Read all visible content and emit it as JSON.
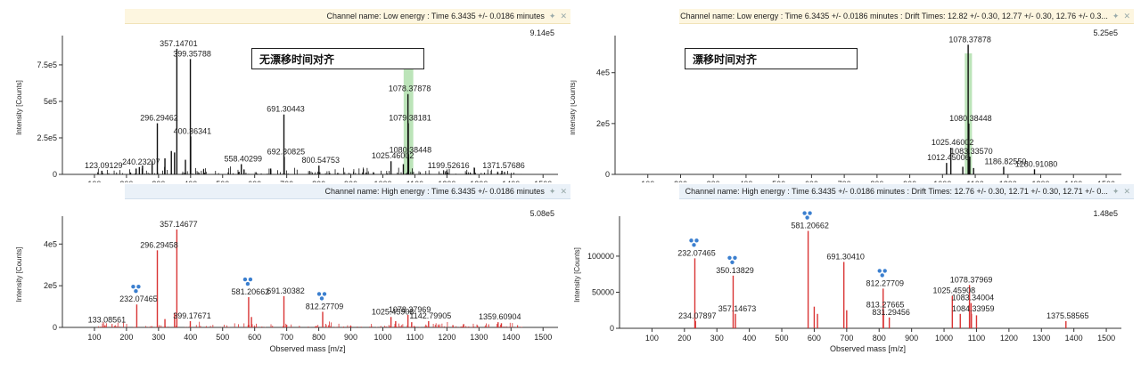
{
  "panels": [
    {
      "header": "Channel name: Low energy : Time 6.3435 +/- 0.0186 minutes",
      "header_kind": "low",
      "annotation": "无漂移时间对齐"
    },
    {
      "header": "Channel name: Low energy : Time 6.3435 +/- 0.0186 minutes : Drift Times: 12.82 +/- 0.30, 12.77 +/- 0.30, 12.76 +/- 0.3...",
      "header_kind": "low",
      "annotation": "漂移时间对齐"
    },
    {
      "header": "Channel name: High energy : Time 6.3435 +/- 0.0186 minutes",
      "header_kind": "high",
      "annotation": ""
    },
    {
      "header": "Channel name: High energy : Time 6.3435 +/- 0.0186 minutes : Drift Times: 12.76 +/- 0.30, 12.71 +/- 0.30, 12.71 +/- 0...",
      "header_kind": "high",
      "annotation": ""
    }
  ],
  "colors": {
    "low_peaks": "#111111",
    "high_peaks": "#d93434",
    "highlight": "#8fd28a",
    "glycan_icon": "#3b7fcf"
  },
  "icons": {
    "glycan": "glycan-icon",
    "pin": "pin-icon",
    "close": "close-icon"
  },
  "chart_data": [
    {
      "type": "bar",
      "subtype": "mass-spectrum",
      "xlabel": "",
      "ylabel": "Intensity [Counts]",
      "xlim": [
        0,
        1530
      ],
      "ylim": [
        0,
        914000.0
      ],
      "x_ticks": [
        100,
        200,
        300,
        400,
        500,
        600,
        700,
        800,
        900,
        1000,
        1100,
        1200,
        1300,
        1400,
        1500
      ],
      "y_ticks": [
        {
          "v": 0,
          "label": "0"
        },
        {
          "v": 250000,
          "label": "2.5e5"
        },
        {
          "v": 500000,
          "label": "5e5"
        },
        {
          "v": 750000,
          "label": "7.5e5"
        }
      ],
      "max_intensity_label": "9.14e5",
      "highlight_range": [
        1065,
        1095
      ],
      "peaks": [
        {
          "x": 357.14701,
          "y": 860000,
          "label": "357.14701"
        },
        {
          "x": 399.35788,
          "y": 790000,
          "label": "399.35788"
        },
        {
          "x": 296.29462,
          "y": 350000,
          "label": "296.29462"
        },
        {
          "x": 400.36341,
          "y": 260000,
          "label": "400.36341"
        },
        {
          "x": 691.30443,
          "y": 410000,
          "label": "691.30443"
        },
        {
          "x": 692.30825,
          "y": 120000,
          "label": "692.30825"
        },
        {
          "x": 1078.37878,
          "y": 550000,
          "label": "1078.37878"
        },
        {
          "x": 1079.38181,
          "y": 350000,
          "label": "1079.38181"
        },
        {
          "x": 1080.38448,
          "y": 130000,
          "label": "1080.38448"
        },
        {
          "x": 1025.46002,
          "y": 90000,
          "label": "1025.46002"
        },
        {
          "x": 800.54753,
          "y": 60000,
          "label": "800.54753"
        },
        {
          "x": 558.40299,
          "y": 70000,
          "label": "558.40299"
        },
        {
          "x": 240.23207,
          "y": 50000,
          "label": "240.23207"
        },
        {
          "x": 123.09129,
          "y": 25000,
          "label": "123.09129"
        },
        {
          "x": 1199.52616,
          "y": 25000,
          "label": "1199.52616"
        },
        {
          "x": 1371.57686,
          "y": 25000,
          "label": "1371.57686"
        },
        {
          "x": 340,
          "y": 160000,
          "label": ""
        },
        {
          "x": 350,
          "y": 150000,
          "label": ""
        },
        {
          "x": 320,
          "y": 110000,
          "label": ""
        },
        {
          "x": 280,
          "y": 90000,
          "label": ""
        },
        {
          "x": 384,
          "y": 100000,
          "label": ""
        },
        {
          "x": 250,
          "y": 60000,
          "label": ""
        },
        {
          "x": 230,
          "y": 40000,
          "label": ""
        },
        {
          "x": 650,
          "y": 40000,
          "label": ""
        },
        {
          "x": 1064,
          "y": 70000,
          "label": ""
        }
      ],
      "noise": true
    },
    {
      "type": "bar",
      "subtype": "mass-spectrum",
      "xlabel": "",
      "ylabel": "Intensity [Counts]",
      "xlim": [
        0,
        1530
      ],
      "ylim": [
        0,
        525000.0
      ],
      "x_ticks": [
        100,
        200,
        300,
        400,
        500,
        600,
        700,
        800,
        900,
        1000,
        1100,
        1200,
        1300,
        1400,
        1500
      ],
      "y_ticks": [
        {
          "v": 0,
          "label": "0"
        },
        {
          "v": 200000,
          "label": "2e5"
        },
        {
          "v": 400000,
          "label": "4e5"
        }
      ],
      "max_intensity_label": "5.25e5",
      "highlight_range": [
        1068,
        1090
      ],
      "peaks": [
        {
          "x": 1078.37878,
          "y": 510000,
          "label": "1078.37878"
        },
        {
          "x": 1080.38448,
          "y": 200000,
          "label": "1080.38448"
        },
        {
          "x": 1025.46002,
          "y": 105000,
          "label": "1025.46002"
        },
        {
          "x": 1083.3357,
          "y": 70000,
          "label": "1083.33570"
        },
        {
          "x": 1012.45006,
          "y": 45000,
          "label": "1012.45006"
        },
        {
          "x": 1186.8255,
          "y": 30000,
          "label": "1186.82550"
        },
        {
          "x": 1280.9108,
          "y": 20000,
          "label": "1280.91080"
        },
        {
          "x": 1062,
          "y": 30000,
          "label": ""
        },
        {
          "x": 1095,
          "y": 25000,
          "label": ""
        }
      ],
      "noise": false
    },
    {
      "type": "bar",
      "subtype": "mass-spectrum",
      "xlabel": "Observed mass [m/z]",
      "ylabel": "Intensity [Counts]",
      "xlim": [
        0,
        1530
      ],
      "ylim": [
        0,
        508000.0
      ],
      "x_ticks": [
        100,
        200,
        300,
        400,
        500,
        600,
        700,
        800,
        900,
        1000,
        1100,
        1200,
        1300,
        1400,
        1500
      ],
      "y_ticks": [
        {
          "v": 0,
          "label": "0"
        },
        {
          "v": 200000,
          "label": "2e5"
        },
        {
          "v": 400000,
          "label": "4e5"
        }
      ],
      "max_intensity_label": "5.08e5",
      "peaks": [
        {
          "x": 357.14677,
          "y": 470000,
          "label": "357.14677"
        },
        {
          "x": 296.29458,
          "y": 370000,
          "label": "296.29458"
        },
        {
          "x": 232.07465,
          "y": 110000,
          "label": "232.07465",
          "glycan": true
        },
        {
          "x": 581.20662,
          "y": 145000,
          "label": "581.20662",
          "glycan": true
        },
        {
          "x": 691.30382,
          "y": 150000,
          "label": "691.30382"
        },
        {
          "x": 812.27709,
          "y": 75000,
          "label": "812.27709",
          "glycan": true
        },
        {
          "x": 1025.45908,
          "y": 50000,
          "label": "1025.45908"
        },
        {
          "x": 1078.37969,
          "y": 60000,
          "label": "1078.37969"
        },
        {
          "x": 1142.79905,
          "y": 30000,
          "label": "1142.79905"
        },
        {
          "x": 1359.60904,
          "y": 25000,
          "label": "1359.60904"
        },
        {
          "x": 399.17671,
          "y": 30000,
          "label": "399.17671"
        },
        {
          "x": 133.08561,
          "y": 10000,
          "label": "133.08561"
        },
        {
          "x": 350,
          "y": 70000,
          "label": ""
        },
        {
          "x": 320,
          "y": 40000,
          "label": ""
        },
        {
          "x": 590,
          "y": 50000,
          "label": ""
        },
        {
          "x": 1040,
          "y": 30000,
          "label": ""
        },
        {
          "x": 1090,
          "y": 25000,
          "label": ""
        },
        {
          "x": 1370,
          "y": 20000,
          "label": ""
        }
      ],
      "noise": true
    },
    {
      "type": "bar",
      "subtype": "mass-spectrum",
      "xlabel": "Observed mass [m/z]",
      "ylabel": "Intensity [Counts]",
      "xlim": [
        0,
        1530
      ],
      "ylim": [
        0,
        148000.0
      ],
      "x_ticks": [
        100,
        200,
        300,
        400,
        500,
        600,
        700,
        800,
        900,
        1000,
        1100,
        1200,
        1300,
        1400,
        1500
      ],
      "y_ticks": [
        {
          "v": 0,
          "label": "0"
        },
        {
          "v": 50000,
          "label": "50000"
        },
        {
          "v": 100000,
          "label": "100000"
        }
      ],
      "max_intensity_label": "1.48e5",
      "peaks": [
        {
          "x": 581.20662,
          "y": 135000,
          "label": "581.20662",
          "glycan": true
        },
        {
          "x": 232.07465,
          "y": 97000,
          "label": "232.07465",
          "glycan": true
        },
        {
          "x": 350.13829,
          "y": 73000,
          "label": "350.13829",
          "glycan": true
        },
        {
          "x": 691.3041,
          "y": 92000,
          "label": "691.30410"
        },
        {
          "x": 812.27709,
          "y": 55000,
          "label": "812.27709",
          "glycan": true
        },
        {
          "x": 1078.37969,
          "y": 60000,
          "label": "1078.37969"
        },
        {
          "x": 1025.45908,
          "y": 45000,
          "label": "1025.45908"
        },
        {
          "x": 1083.34004,
          "y": 35000,
          "label": "1083.34004"
        },
        {
          "x": 1084.33959,
          "y": 20000,
          "label": "1084.33959"
        },
        {
          "x": 813.27665,
          "y": 25000,
          "label": "813.27665"
        },
        {
          "x": 831.29456,
          "y": 15000,
          "label": "831.29456"
        },
        {
          "x": 357.14673,
          "y": 20000,
          "label": "357.14673"
        },
        {
          "x": 234.07897,
          "y": 10000,
          "label": "234.07897"
        },
        {
          "x": 1375.58565,
          "y": 10000,
          "label": "1375.58565"
        },
        {
          "x": 600,
          "y": 30000,
          "label": ""
        },
        {
          "x": 610,
          "y": 20000,
          "label": ""
        },
        {
          "x": 700,
          "y": 25000,
          "label": ""
        },
        {
          "x": 1050,
          "y": 20000,
          "label": ""
        },
        {
          "x": 1100,
          "y": 18000,
          "label": ""
        }
      ],
      "noise": false
    }
  ]
}
